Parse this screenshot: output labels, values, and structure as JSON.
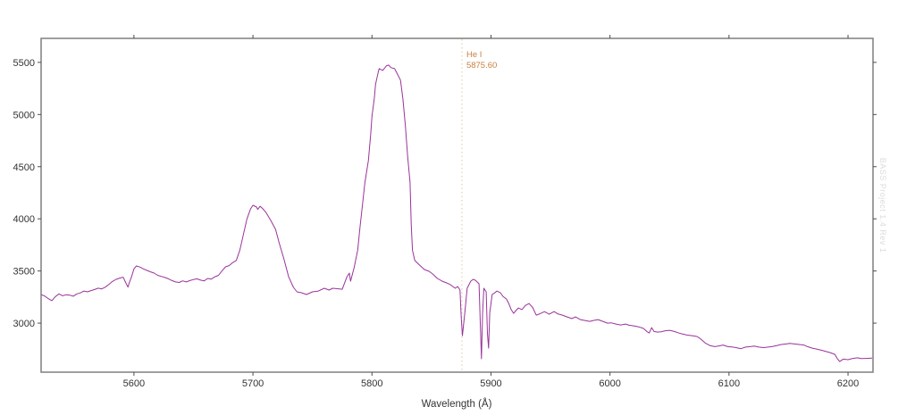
{
  "chart_data": {
    "type": "line",
    "title": "",
    "xlabel": "Wavelength (Å)",
    "ylabel": "",
    "xlim": [
      5522,
      6221
    ],
    "ylim": [
      2530,
      5730
    ],
    "x_ticks": [
      5600,
      5700,
      5800,
      5900,
      6000,
      6100,
      6200
    ],
    "y_ticks": [
      3000,
      3500,
      4000,
      4500,
      5000,
      5500
    ],
    "grid": false,
    "legend": "none",
    "line_color": "#993399",
    "axis_color": "#7f7f7f",
    "tick_color": "#4d4d4d",
    "annotation": {
      "line1": "He I",
      "line2": "5875.60",
      "wavelength": 5875.6,
      "text_color": "#c87e3e",
      "guide_color": "#dcc9a2"
    },
    "watermark": "BASS Project 1.4 Rev 1",
    "series": [
      {
        "name": "spectrum",
        "points": [
          [
            5522,
            3274
          ],
          [
            5525,
            3260
          ],
          [
            5528,
            3235
          ],
          [
            5531,
            3215
          ],
          [
            5534,
            3255
          ],
          [
            5537,
            3280
          ],
          [
            5540,
            3262
          ],
          [
            5543,
            3272
          ],
          [
            5546,
            3268
          ],
          [
            5549,
            3258
          ],
          [
            5552,
            3280
          ],
          [
            5555,
            3290
          ],
          [
            5558,
            3308
          ],
          [
            5561,
            3300
          ],
          [
            5564,
            3312
          ],
          [
            5567,
            3322
          ],
          [
            5570,
            3335
          ],
          [
            5573,
            3328
          ],
          [
            5576,
            3345
          ],
          [
            5579,
            3372
          ],
          [
            5582,
            3400
          ],
          [
            5585,
            3420
          ],
          [
            5588,
            3432
          ],
          [
            5591,
            3440
          ],
          [
            5593,
            3390
          ],
          [
            5595,
            3345
          ],
          [
            5596,
            3385
          ],
          [
            5598,
            3445
          ],
          [
            5600,
            3520
          ],
          [
            5602,
            3548
          ],
          [
            5605,
            3538
          ],
          [
            5608,
            3520
          ],
          [
            5611,
            3505
          ],
          [
            5614,
            3492
          ],
          [
            5617,
            3480
          ],
          [
            5620,
            3458
          ],
          [
            5623,
            3448
          ],
          [
            5626,
            3438
          ],
          [
            5629,
            3425
          ],
          [
            5632,
            3408
          ],
          [
            5635,
            3395
          ],
          [
            5638,
            3390
          ],
          [
            5641,
            3405
          ],
          [
            5644,
            3395
          ],
          [
            5647,
            3408
          ],
          [
            5650,
            3418
          ],
          [
            5653,
            3425
          ],
          [
            5656,
            3412
          ],
          [
            5659,
            3405
          ],
          [
            5662,
            3428
          ],
          [
            5665,
            3422
          ],
          [
            5668,
            3445
          ],
          [
            5671,
            3458
          ],
          [
            5674,
            3500
          ],
          [
            5677,
            3540
          ],
          [
            5680,
            3552
          ],
          [
            5683,
            3580
          ],
          [
            5686,
            3600
          ],
          [
            5689,
            3700
          ],
          [
            5692,
            3850
          ],
          [
            5695,
            4000
          ],
          [
            5698,
            4095
          ],
          [
            5700,
            4130
          ],
          [
            5703,
            4113
          ],
          [
            5704,
            4090
          ],
          [
            5706,
            4121
          ],
          [
            5708,
            4100
          ],
          [
            5711,
            4061
          ],
          [
            5715,
            3984
          ],
          [
            5719,
            3899
          ],
          [
            5722,
            3770
          ],
          [
            5726,
            3617
          ],
          [
            5730,
            3445
          ],
          [
            5734,
            3343
          ],
          [
            5737,
            3300
          ],
          [
            5741,
            3291
          ],
          [
            5745,
            3274
          ],
          [
            5750,
            3300
          ],
          [
            5755,
            3308
          ],
          [
            5760,
            3334
          ],
          [
            5764,
            3317
          ],
          [
            5767,
            3334
          ],
          [
            5771,
            3330
          ],
          [
            5775,
            3325
          ],
          [
            5779,
            3445
          ],
          [
            5781,
            3480
          ],
          [
            5782,
            3402
          ],
          [
            5785,
            3531
          ],
          [
            5788,
            3700
          ],
          [
            5790,
            3920
          ],
          [
            5792,
            4130
          ],
          [
            5794,
            4344
          ],
          [
            5797,
            4560
          ],
          [
            5799,
            4815
          ],
          [
            5800,
            4985
          ],
          [
            5802,
            5155
          ],
          [
            5803,
            5290
          ],
          [
            5805,
            5390
          ],
          [
            5806,
            5440
          ],
          [
            5809,
            5423
          ],
          [
            5812,
            5466
          ],
          [
            5814,
            5474
          ],
          [
            5816,
            5449
          ],
          [
            5819,
            5440
          ],
          [
            5821,
            5397
          ],
          [
            5824,
            5330
          ],
          [
            5826,
            5150
          ],
          [
            5828,
            4900
          ],
          [
            5830,
            4600
          ],
          [
            5832,
            4350
          ],
          [
            5833,
            3950
          ],
          [
            5834,
            3700
          ],
          [
            5836,
            3600
          ],
          [
            5840,
            3557
          ],
          [
            5844,
            3514
          ],
          [
            5848,
            3497
          ],
          [
            5851,
            3471
          ],
          [
            5855,
            3428
          ],
          [
            5859,
            3402
          ],
          [
            5863,
            3385
          ],
          [
            5866,
            3368
          ],
          [
            5870,
            3334
          ],
          [
            5872,
            3351
          ],
          [
            5874,
            3317
          ],
          [
            5875,
            3050
          ],
          [
            5876,
            2880
          ],
          [
            5878,
            3100
          ],
          [
            5880,
            3334
          ],
          [
            5883,
            3402
          ],
          [
            5885,
            3420
          ],
          [
            5887,
            3410
          ],
          [
            5890,
            3377
          ],
          [
            5891,
            3000
          ],
          [
            5892,
            2658
          ],
          [
            5893,
            3100
          ],
          [
            5894,
            3334
          ],
          [
            5896,
            3300
          ],
          [
            5897,
            2900
          ],
          [
            5898,
            2760
          ],
          [
            5899,
            3100
          ],
          [
            5901,
            3274
          ],
          [
            5903,
            3290
          ],
          [
            5905,
            3308
          ],
          [
            5908,
            3291
          ],
          [
            5910,
            3257
          ],
          [
            5913,
            3231
          ],
          [
            5915,
            3188
          ],
          [
            5917,
            3130
          ],
          [
            5919,
            3094
          ],
          [
            5921,
            3120
          ],
          [
            5923,
            3145
          ],
          [
            5926,
            3130
          ],
          [
            5929,
            3170
          ],
          [
            5932,
            3188
          ],
          [
            5935,
            3150
          ],
          [
            5938,
            3077
          ],
          [
            5941,
            3090
          ],
          [
            5945,
            3110
          ],
          [
            5949,
            3085
          ],
          [
            5953,
            3111
          ],
          [
            5956,
            3090
          ],
          [
            5960,
            3077
          ],
          [
            5964,
            3060
          ],
          [
            5968,
            3043
          ],
          [
            5971,
            3060
          ],
          [
            5975,
            3034
          ],
          [
            5979,
            3025
          ],
          [
            5983,
            3017
          ],
          [
            5986,
            3025
          ],
          [
            5990,
            3034
          ],
          [
            5994,
            3017
          ],
          [
            5998,
            3000
          ],
          [
            6001,
            3003
          ],
          [
            6005,
            2991
          ],
          [
            6009,
            2983
          ],
          [
            6013,
            2991
          ],
          [
            6016,
            2980
          ],
          [
            6020,
            2974
          ],
          [
            6024,
            2965
          ],
          [
            6028,
            2950
          ],
          [
            6031,
            2920
          ],
          [
            6033,
            2906
          ],
          [
            6035,
            2957
          ],
          [
            6037,
            2920
          ],
          [
            6040,
            2914
          ],
          [
            6043,
            2918
          ],
          [
            6046,
            2925
          ],
          [
            6050,
            2931
          ],
          [
            6054,
            2920
          ],
          [
            6058,
            2905
          ],
          [
            6061,
            2895
          ],
          [
            6065,
            2885
          ],
          [
            6069,
            2880
          ],
          [
            6073,
            2872
          ],
          [
            6076,
            2850
          ],
          [
            6080,
            2810
          ],
          [
            6084,
            2785
          ],
          [
            6088,
            2775
          ],
          [
            6091,
            2780
          ],
          [
            6095,
            2790
          ],
          [
            6099,
            2775
          ],
          [
            6103,
            2770
          ],
          [
            6106,
            2765
          ],
          [
            6110,
            2755
          ],
          [
            6114,
            2770
          ],
          [
            6118,
            2775
          ],
          [
            6121,
            2780
          ],
          [
            6125,
            2770
          ],
          [
            6129,
            2765
          ],
          [
            6133,
            2770
          ],
          [
            6136,
            2775
          ],
          [
            6140,
            2785
          ],
          [
            6144,
            2795
          ],
          [
            6148,
            2800
          ],
          [
            6151,
            2806
          ],
          [
            6155,
            2800
          ],
          [
            6159,
            2795
          ],
          [
            6163,
            2790
          ],
          [
            6166,
            2775
          ],
          [
            6170,
            2760
          ],
          [
            6174,
            2750
          ],
          [
            6178,
            2740
          ],
          [
            6181,
            2730
          ],
          [
            6185,
            2717
          ],
          [
            6189,
            2700
          ],
          [
            6191,
            2660
          ],
          [
            6193,
            2632
          ],
          [
            6196,
            2655
          ],
          [
            6200,
            2650
          ],
          [
            6204,
            2662
          ],
          [
            6208,
            2668
          ],
          [
            6211,
            2660
          ],
          [
            6215,
            2662
          ],
          [
            6220,
            2665
          ]
        ]
      }
    ]
  }
}
